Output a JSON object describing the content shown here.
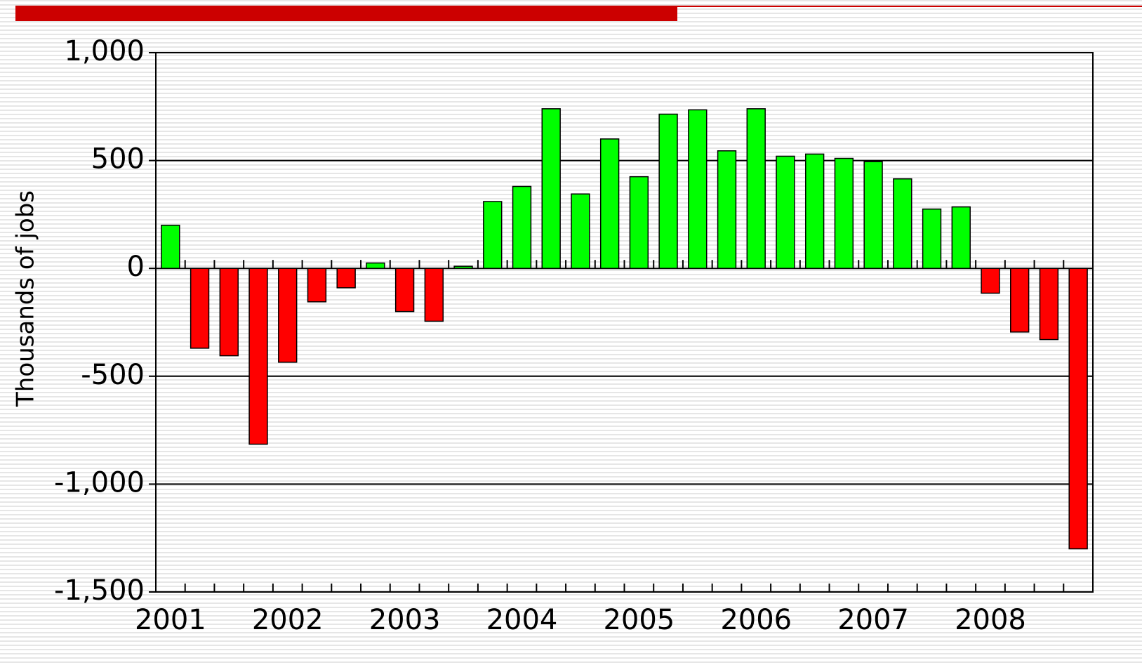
{
  "chart_data": {
    "type": "bar",
    "y_label": "Thousands of jobs",
    "categories": [
      "2001",
      null,
      null,
      null,
      "2002",
      null,
      null,
      null,
      "2003",
      null,
      null,
      null,
      "2004",
      null,
      null,
      null,
      "2005",
      null,
      null,
      null,
      "2006",
      null,
      null,
      null,
      "2007",
      null,
      null,
      null,
      "2008",
      null,
      null,
      null
    ],
    "values": [
      200,
      -370,
      -405,
      -815,
      -435,
      -155,
      -90,
      25,
      -200,
      -245,
      10,
      310,
      380,
      740,
      345,
      600,
      425,
      715,
      735,
      545,
      740,
      520,
      530,
      510,
      495,
      415,
      275,
      285,
      -115,
      -295,
      -330,
      -1300
    ],
    "positive_color": "#00ff00",
    "negative_color": "#ff0000",
    "ylim": [
      -1500,
      1000
    ],
    "yticks": [
      {
        "value": -1500,
        "label": "-1,500"
      },
      {
        "value": -1000,
        "label": "-1,000"
      },
      {
        "value": -500,
        "label": "-500"
      },
      0,
      500,
      {
        "value": 1000,
        "label": "1,000"
      }
    ],
    "grid": true
  }
}
